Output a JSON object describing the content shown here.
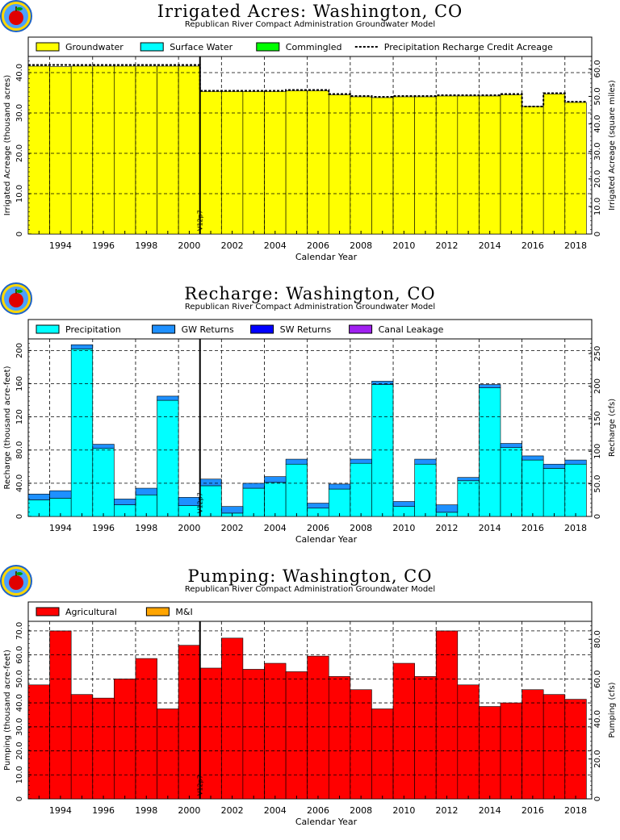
{
  "chart_data": [
    {
      "type": "bar",
      "title": "Irrigated Acres: Washington, CO",
      "subtitle": "Republican River Compact Administration Groundwater Model",
      "xlabel": "Calendar Year",
      "ylabel": "Irrigated Acreage (thousand acres)",
      "ylabel_right": "Irrigated Acreage (square miles)",
      "x": [
        1993,
        1994,
        1995,
        1996,
        1997,
        1998,
        1999,
        2000,
        2001,
        2002,
        2003,
        2004,
        2005,
        2006,
        2007,
        2008,
        2009,
        2010,
        2011,
        2012,
        2013,
        2014,
        2015,
        2016,
        2017,
        2018
      ],
      "xticks": [
        "1994",
        "1996",
        "1998",
        "2000",
        "2002",
        "2004",
        "2006",
        "2008",
        "2010",
        "2012",
        "2014",
        "2016",
        "2018"
      ],
      "ylim": [
        0,
        44
      ],
      "yticks": [
        0,
        10,
        20,
        30,
        40
      ],
      "ytick_labels": [
        "0",
        "10.0",
        "20.0",
        "30.0",
        "40.0"
      ],
      "yticks_right": [
        "0",
        "10.0",
        "20.0",
        "30.0",
        "40.0",
        "50.0",
        "60.0"
      ],
      "marker": {
        "year": 2001,
        "label": "V12p7"
      },
      "series": [
        {
          "name": "Groundwater",
          "color": "#ffff00",
          "values": [
            41.6,
            41.5,
            41.6,
            41.6,
            41.6,
            41.6,
            41.6,
            41.6,
            35.3,
            35.3,
            35.3,
            35.3,
            35.5,
            35.5,
            34.5,
            34.0,
            33.8,
            34.0,
            34.0,
            34.2,
            34.2,
            34.2,
            34.5,
            31.6,
            34.7,
            32.6
          ]
        },
        {
          "name": "Surface Water",
          "color": "#00ffff",
          "values": [
            0,
            0,
            0,
            0,
            0,
            0,
            0,
            0,
            0,
            0,
            0,
            0,
            0,
            0,
            0,
            0,
            0,
            0,
            0,
            0,
            0,
            0,
            0,
            0,
            0,
            0
          ]
        },
        {
          "name": "Commingled",
          "color": "#00ff00",
          "values": [
            0,
            0,
            0,
            0,
            0,
            0,
            0,
            0,
            0,
            0,
            0,
            0,
            0,
            0,
            0,
            0,
            0,
            0,
            0,
            0,
            0,
            0,
            0,
            0,
            0,
            0
          ]
        },
        {
          "name": "Precipitation Recharge Credit Acreage",
          "style": "dashed",
          "color": "#000000",
          "values": [
            41.9,
            41.9,
            41.9,
            41.9,
            41.9,
            41.9,
            41.9,
            41.9,
            35.5,
            35.5,
            35.5,
            35.5,
            35.7,
            35.7,
            34.7,
            34.2,
            34.0,
            34.2,
            34.2,
            34.4,
            34.4,
            34.4,
            34.7,
            31.6,
            34.9,
            32.8
          ]
        }
      ]
    },
    {
      "type": "bar",
      "title": "Recharge: Washington, CO",
      "subtitle": "Republican River Compact Administration Groundwater Model",
      "xlabel": "Calendar Year",
      "ylabel": "Recharge (thousand acre-feet)",
      "ylabel_right": "Recharge (cfs)",
      "x": [
        1993,
        1994,
        1995,
        1996,
        1997,
        1998,
        1999,
        2000,
        2001,
        2002,
        2003,
        2004,
        2005,
        2006,
        2007,
        2008,
        2009,
        2010,
        2011,
        2012,
        2013,
        2014,
        2015,
        2016,
        2017,
        2018
      ],
      "xticks": [
        "1994",
        "1996",
        "1998",
        "2000",
        "2002",
        "2004",
        "2006",
        "2008",
        "2010",
        "2012",
        "2014",
        "2016",
        "2018"
      ],
      "ylim": [
        0,
        214
      ],
      "yticks": [
        0,
        40,
        80,
        120,
        160,
        200
      ],
      "ytick_labels": [
        "0",
        "40.0",
        "80.0",
        "120",
        "160",
        "200"
      ],
      "yticks_right": [
        "0",
        "50.0",
        "100",
        "150",
        "200",
        "250"
      ],
      "marker": {
        "year": 2001,
        "label": "V12p7"
      },
      "series": [
        {
          "name": "Precipitation",
          "color": "#00ffff",
          "values": [
            20,
            22,
            202,
            82,
            14,
            26,
            140,
            13,
            37,
            4,
            34,
            41,
            63,
            10,
            33,
            64,
            159,
            12,
            63,
            5,
            43,
            155,
            83,
            68,
            58,
            63
          ]
        },
        {
          "name": "GW Returns",
          "color": "#1e90ff",
          "values": [
            7,
            9,
            5,
            5,
            7,
            8,
            5,
            10,
            8,
            8,
            6,
            7,
            6,
            6,
            6,
            5,
            4,
            6,
            6,
            9,
            4,
            4,
            5,
            5,
            5,
            5
          ]
        },
        {
          "name": "SW Returns",
          "color": "#0000ff",
          "values": [
            0,
            0,
            0,
            0,
            0,
            0,
            0,
            0,
            0,
            0,
            0,
            0,
            0,
            0,
            0,
            0,
            0,
            0,
            0,
            0,
            0,
            0,
            0,
            0,
            0,
            0
          ]
        },
        {
          "name": "Canal Leakage",
          "color": "#a020f0",
          "values": [
            0,
            0,
            0,
            0,
            0,
            0,
            0,
            0,
            0,
            0,
            0,
            0,
            0,
            0,
            0,
            0,
            0,
            0,
            0,
            0,
            0,
            0,
            0,
            0,
            0,
            0
          ]
        }
      ]
    },
    {
      "type": "bar",
      "title": "Pumping: Washington, CO",
      "subtitle": "Republican River Compact Administration Groundwater Model",
      "xlabel": "Calendar Year",
      "ylabel": "Pumping (thousand acre-feet)",
      "ylabel_right": "Pumping (cfs)",
      "x": [
        1993,
        1994,
        1995,
        1996,
        1997,
        1998,
        1999,
        2000,
        2001,
        2002,
        2003,
        2004,
        2005,
        2006,
        2007,
        2008,
        2009,
        2010,
        2011,
        2012,
        2013,
        2014,
        2015,
        2016,
        2017,
        2018
      ],
      "xticks": [
        "1994",
        "1996",
        "1998",
        "2000",
        "2002",
        "2004",
        "2006",
        "2008",
        "2010",
        "2012",
        "2014",
        "2016",
        "2018"
      ],
      "ylim": [
        0,
        74
      ],
      "yticks": [
        0,
        10,
        20,
        30,
        40,
        50,
        60,
        70
      ],
      "ytick_labels": [
        "0",
        "10.0",
        "20.0",
        "30.0",
        "40.0",
        "50.0",
        "60.0",
        "70.0"
      ],
      "yticks_right": [
        "0",
        "20.0",
        "40.0",
        "60.0",
        "80.0"
      ],
      "marker": {
        "year": 2001,
        "label": "V12p7"
      },
      "series": [
        {
          "name": "Agricultural",
          "color": "#ff0000",
          "values": [
            47.5,
            70.0,
            43.5,
            42.0,
            50.0,
            58.5,
            37.5,
            64.0,
            54.5,
            67.0,
            54.0,
            56.5,
            53.0,
            59.5,
            51.0,
            45.5,
            37.5,
            56.5,
            51.0,
            70.0,
            47.5,
            38.5,
            40.0,
            45.5,
            43.5,
            41.5
          ]
        },
        {
          "name": "M&I",
          "color": "#ffa500",
          "values": [
            0,
            0,
            0,
            0,
            0,
            0,
            0,
            0,
            0,
            0,
            0,
            0,
            0,
            0,
            0,
            0,
            0,
            0,
            0,
            0,
            0,
            0,
            0,
            0,
            0,
            0
          ]
        }
      ]
    }
  ]
}
